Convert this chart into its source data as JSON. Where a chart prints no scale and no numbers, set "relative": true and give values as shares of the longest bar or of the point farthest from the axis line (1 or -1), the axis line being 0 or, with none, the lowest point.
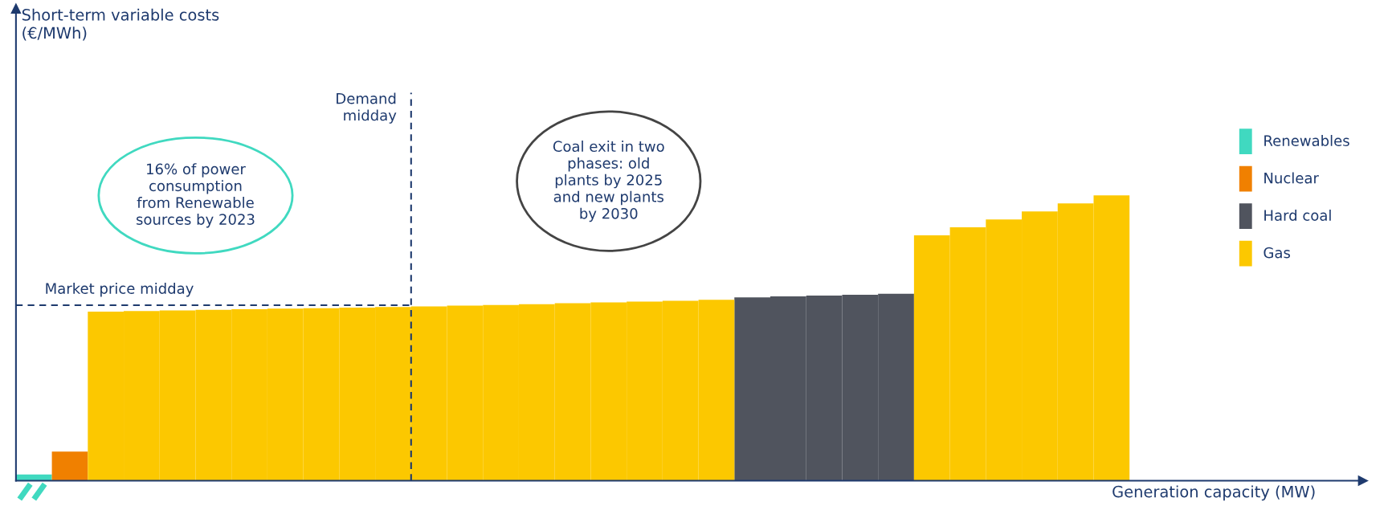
{
  "chart_data": {
    "type": "bar",
    "relative": true,
    "stacked": true,
    "xlabel": "Generation capacity (MW)",
    "categories": [
      null,
      null,
      null,
      null,
      null,
      null,
      null,
      null,
      null,
      null,
      null,
      null,
      null,
      null,
      null,
      null,
      null,
      null,
      null,
      null,
      null,
      null,
      null,
      null,
      null,
      null,
      null,
      null,
      null,
      null,
      null
    ],
    "series": [
      {
        "name": "Renewables",
        "color": "#40d9c0",
        "values": [
          0.022,
          0,
          0,
          0,
          0,
          0,
          0,
          0,
          0,
          0,
          0,
          0,
          0,
          0,
          0,
          0,
          0,
          0,
          0,
          0,
          0,
          0,
          0,
          0,
          0,
          0,
          0,
          0,
          0,
          0,
          0
        ]
      },
      {
        "name": "Nuclear",
        "color": "#f08000",
        "values": [
          0,
          0.102,
          0,
          0,
          0,
          0,
          0,
          0,
          0,
          0,
          0,
          0,
          0,
          0,
          0,
          0,
          0,
          0,
          0,
          0,
          0,
          0,
          0,
          0,
          0,
          0,
          0,
          0,
          0,
          0,
          0
        ]
      },
      {
        "name": "Hard coal",
        "color": "#50545e",
        "values": [
          0,
          0,
          0,
          0,
          0,
          0,
          0,
          0,
          0,
          0,
          0,
          0,
          0,
          0,
          0,
          0,
          0,
          0,
          0,
          0,
          0.643,
          0.646,
          0.649,
          0.652,
          0.655,
          0,
          0,
          0,
          0,
          0,
          0
        ]
      },
      {
        "name": "Gas",
        "color": "#fcc800",
        "values": [
          0,
          0,
          0.593,
          0.595,
          0.597,
          0.599,
          0.601,
          0.603,
          0.605,
          0.607,
          0.609,
          0.611,
          0.614,
          0.616,
          0.619,
          0.622,
          0.625,
          0.628,
          0.631,
          0.634,
          0,
          0,
          0,
          0,
          0,
          0.86,
          0.888,
          0.916,
          0.944,
          0.972,
          1.0
        ]
      }
    ],
    "ref_lines": [
      {
        "axis": "y",
        "value": 0.615,
        "label": "Market price midday",
        "color": "#1e3a6e",
        "line_style": "dashed"
      }
    ],
    "annotations": [
      "Short-term variable costs\n(€/MWh)",
      "Demand\nmidday",
      "16% of power\nconsumption\nfrom Renewable\nsources by 2023",
      "Coal exit in two\nphases: old\nplants by 2025\nand new plants\nby 2030"
    ],
    "legend": "right"
  }
}
